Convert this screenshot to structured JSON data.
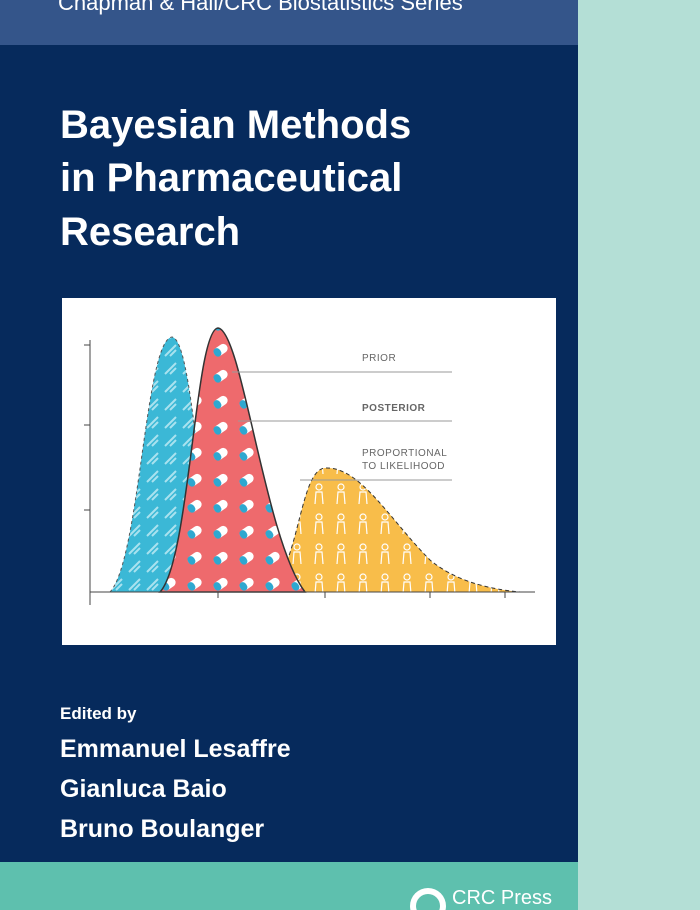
{
  "cover": {
    "series": "Chapman & Hall/CRC Biostatistics Series",
    "title_lines": [
      "Bayesian Methods",
      "in Pharmaceutical",
      "Research"
    ],
    "illustration": {
      "prior": "PRIOR",
      "posterior": "POSTERIOR",
      "likelihood_lines": [
        "PROPORTIONAL",
        "TO LIKELIHOOD"
      ]
    },
    "edited_by": "Edited by",
    "editors": [
      "Emmanuel Lesaffre",
      "Gianluca Baio",
      "Bruno Boulanger"
    ],
    "publisher": "CRC Press"
  }
}
